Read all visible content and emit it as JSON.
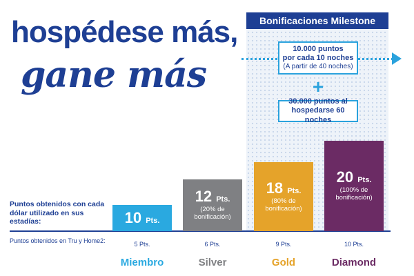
{
  "headline": {
    "line1": "hospédese más,",
    "line2": "gane más"
  },
  "milestone": {
    "title": "Bonificaciones Milestone",
    "bonus1": {
      "line1": "10.000 puntos",
      "line2": "por cada 10 noches",
      "line3": "(A partir de 40 noches)"
    },
    "plus": "+",
    "bonus2": {
      "line1": "30.000 puntos al",
      "line2": "hospedarse 60 noches"
    }
  },
  "axis": {
    "points_label": "Puntos obtenidos con cada dólar utilizado en sus estadías:",
    "tru_label": "Puntos obtenidos en Tru y Home2:"
  },
  "colors": {
    "brand": "#1e3f94",
    "accent": "#2aa2dd",
    "member": "#2aa9e0",
    "silver": "#7f8083",
    "gold": "#e5a32a",
    "diamond": "#6b2b64"
  },
  "chart_data": {
    "type": "bar",
    "categories": [
      "Miembro",
      "Silver",
      "Gold",
      "Diamond"
    ],
    "values": [
      10,
      12,
      18,
      20
    ],
    "value_labels": [
      "10",
      "12",
      "18",
      "20"
    ],
    "unit": "Pts.",
    "bonus_notes": [
      "",
      "(20% de bonificación)",
      "(80% de bonificación)",
      "(100% de bonificación)"
    ],
    "tru_home2": [
      "5 Pts.",
      "6 Pts.",
      "9 Pts.",
      "10 Pts."
    ]
  }
}
